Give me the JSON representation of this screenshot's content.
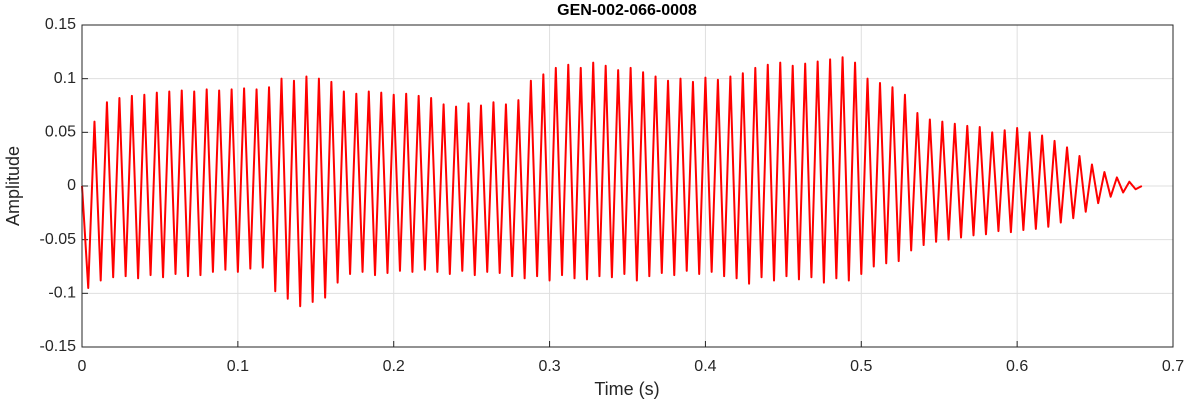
{
  "chart_data": {
    "type": "line",
    "title": "GEN-002-066-0008",
    "x_label": "Time (s)",
    "y_label": "Amplitude",
    "xlim": [
      0,
      0.7
    ],
    "xticks": [
      0,
      0.1,
      0.2,
      0.3,
      0.4,
      0.5,
      0.6,
      0.7
    ],
    "ylim": [
      -0.15,
      0.15
    ],
    "yticks": [
      -0.15,
      -0.1,
      -0.05,
      0,
      0.05,
      0.1,
      0.15
    ],
    "grid": true,
    "series": [
      {
        "color": "#ff0000",
        "x": [
          0,
          0.004,
          0.008,
          0.012,
          0.016,
          0.02,
          0.024,
          0.028,
          0.032,
          0.036,
          0.04,
          0.044,
          0.048,
          0.052,
          0.056,
          0.06,
          0.064,
          0.068,
          0.072,
          0.076,
          0.08,
          0.084,
          0.088,
          0.092,
          0.096,
          0.1,
          0.104,
          0.108,
          0.112,
          0.116,
          0.12,
          0.124,
          0.128,
          0.132,
          0.136,
          0.14,
          0.144,
          0.148,
          0.152,
          0.156,
          0.16,
          0.164,
          0.168,
          0.172,
          0.176,
          0.18,
          0.184,
          0.188,
          0.192,
          0.196,
          0.2,
          0.204,
          0.208,
          0.212,
          0.216,
          0.22,
          0.224,
          0.228,
          0.232,
          0.236,
          0.24,
          0.244,
          0.248,
          0.252,
          0.256,
          0.26,
          0.264,
          0.268,
          0.272,
          0.276,
          0.28,
          0.284,
          0.288,
          0.292,
          0.296,
          0.3,
          0.304,
          0.308,
          0.312,
          0.316,
          0.32,
          0.324,
          0.328,
          0.332,
          0.336,
          0.34,
          0.344,
          0.348,
          0.352,
          0.356,
          0.36,
          0.364,
          0.368,
          0.372,
          0.376,
          0.38,
          0.384,
          0.388,
          0.392,
          0.396,
          0.4,
          0.404,
          0.408,
          0.412,
          0.416,
          0.42,
          0.424,
          0.428,
          0.432,
          0.436,
          0.44,
          0.444,
          0.448,
          0.452,
          0.456,
          0.46,
          0.464,
          0.468,
          0.472,
          0.476,
          0.48,
          0.484,
          0.488,
          0.492,
          0.496,
          0.5,
          0.504,
          0.508,
          0.512,
          0.516,
          0.52,
          0.524,
          0.528,
          0.532,
          0.536,
          0.54,
          0.544,
          0.548,
          0.552,
          0.556,
          0.56,
          0.564,
          0.568,
          0.572,
          0.576,
          0.58,
          0.584,
          0.588,
          0.592,
          0.596,
          0.6,
          0.604,
          0.608,
          0.612,
          0.616,
          0.62,
          0.624,
          0.628,
          0.632,
          0.636,
          0.64,
          0.644,
          0.648,
          0.652,
          0.656,
          0.66,
          0.664,
          0.668,
          0.672,
          0.676,
          0.68
        ],
        "values": [
          0,
          -0.095,
          0.06,
          -0.088,
          0.078,
          -0.085,
          0.082,
          -0.084,
          0.084,
          -0.086,
          0.085,
          -0.083,
          0.087,
          -0.085,
          0.088,
          -0.082,
          0.089,
          -0.084,
          0.088,
          -0.083,
          0.09,
          -0.08,
          0.089,
          -0.078,
          0.09,
          -0.08,
          0.091,
          -0.077,
          0.09,
          -0.076,
          0.092,
          -0.098,
          0.1,
          -0.105,
          0.098,
          -0.112,
          0.102,
          -0.108,
          0.1,
          -0.104,
          0.097,
          -0.09,
          0.088,
          -0.082,
          0.086,
          -0.08,
          0.088,
          -0.083,
          0.087,
          -0.081,
          0.085,
          -0.079,
          0.086,
          -0.08,
          0.084,
          -0.078,
          0.082,
          -0.08,
          0.076,
          -0.082,
          0.074,
          -0.079,
          0.077,
          -0.083,
          0.075,
          -0.08,
          0.078,
          -0.081,
          0.076,
          -0.084,
          0.08,
          -0.086,
          0.098,
          -0.084,
          0.104,
          -0.088,
          0.11,
          -0.083,
          0.113,
          -0.086,
          0.11,
          -0.087,
          0.115,
          -0.084,
          0.112,
          -0.085,
          0.108,
          -0.082,
          0.11,
          -0.088,
          0.106,
          -0.084,
          0.102,
          -0.081,
          0.098,
          -0.083,
          0.1,
          -0.079,
          0.097,
          -0.082,
          0.101,
          -0.08,
          0.099,
          -0.084,
          0.102,
          -0.086,
          0.105,
          -0.091,
          0.11,
          -0.085,
          0.113,
          -0.088,
          0.115,
          -0.084,
          0.112,
          -0.087,
          0.114,
          -0.085,
          0.116,
          -0.09,
          0.118,
          -0.086,
          0.12,
          -0.088,
          0.115,
          -0.082,
          0.1,
          -0.075,
          0.096,
          -0.072,
          0.092,
          -0.07,
          0.085,
          -0.06,
          0.068,
          -0.055,
          0.062,
          -0.052,
          0.06,
          -0.05,
          0.058,
          -0.048,
          0.056,
          -0.046,
          0.055,
          -0.045,
          0.05,
          -0.042,
          0.052,
          -0.043,
          0.054,
          -0.041,
          0.05,
          -0.04,
          0.047,
          -0.038,
          0.042,
          -0.034,
          0.036,
          -0.03,
          0.028,
          -0.024,
          0.02,
          -0.016,
          0.013,
          -0.01,
          0.008,
          -0.006,
          0.004,
          -0.003,
          0
        ]
      }
    ]
  }
}
